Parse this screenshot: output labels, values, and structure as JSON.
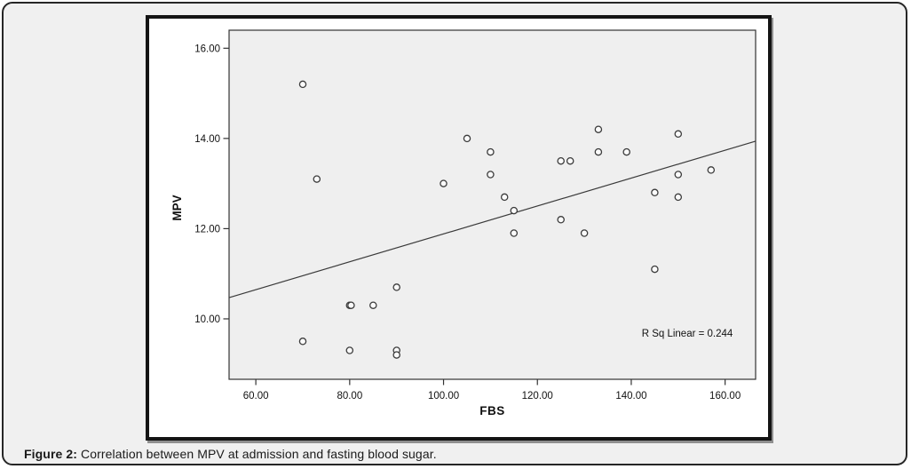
{
  "caption": {
    "prefix": "Figure 2:",
    "text": " Correlation between MPV at admission and fasting blood sugar."
  },
  "chart_data": {
    "type": "scatter",
    "xlabel": "FBS",
    "ylabel": "MPV",
    "annotation": "R Sq Linear = 0.244",
    "xlim": [
      54.3,
      166.5
    ],
    "ylim": [
      8.66,
      16.4
    ],
    "x_ticks": [
      60,
      80,
      100,
      120,
      140,
      160
    ],
    "x_tick_labels": [
      "60.00",
      "80.00",
      "100.00",
      "120.00",
      "140.00",
      "160.00"
    ],
    "y_ticks": [
      10,
      12,
      14,
      16
    ],
    "y_tick_labels": [
      "10.00",
      "12.00",
      "14.00",
      "16.00"
    ],
    "grid": false,
    "legend": "none",
    "marker": "open-circle",
    "points": [
      [
        70,
        15.2
      ],
      [
        73,
        13.1
      ],
      [
        70,
        9.5
      ],
      [
        80,
        10.3
      ],
      [
        80.3,
        10.3
      ],
      [
        85,
        10.3
      ],
      [
        90,
        10.7
      ],
      [
        80,
        9.3
      ],
      [
        90,
        9.3
      ],
      [
        90,
        9.2
      ],
      [
        100,
        13.0
      ],
      [
        105,
        14.0
      ],
      [
        110,
        13.7
      ],
      [
        110,
        13.2
      ],
      [
        113,
        12.7
      ],
      [
        115,
        12.4
      ],
      [
        115,
        11.9
      ],
      [
        125,
        13.5
      ],
      [
        127,
        13.5
      ],
      [
        125,
        12.2
      ],
      [
        130,
        11.9
      ],
      [
        133,
        14.2
      ],
      [
        133,
        13.7
      ],
      [
        139,
        13.7
      ],
      [
        145,
        12.8
      ],
      [
        145,
        11.1
      ],
      [
        150,
        14.1
      ],
      [
        150,
        13.2
      ],
      [
        150,
        12.7
      ],
      [
        157,
        13.3
      ]
    ],
    "fit_line": {
      "x1": 54.3,
      "y1": 10.47,
      "x2": 166.5,
      "y2": 13.94
    },
    "colors": {
      "plot_bg": "#efefef",
      "plot_border": "#333333",
      "marker_stroke": "#3c3c3c",
      "marker_fill": "#fbfbfb",
      "fit_line": "#3a3a3a",
      "text": "#111111"
    }
  }
}
